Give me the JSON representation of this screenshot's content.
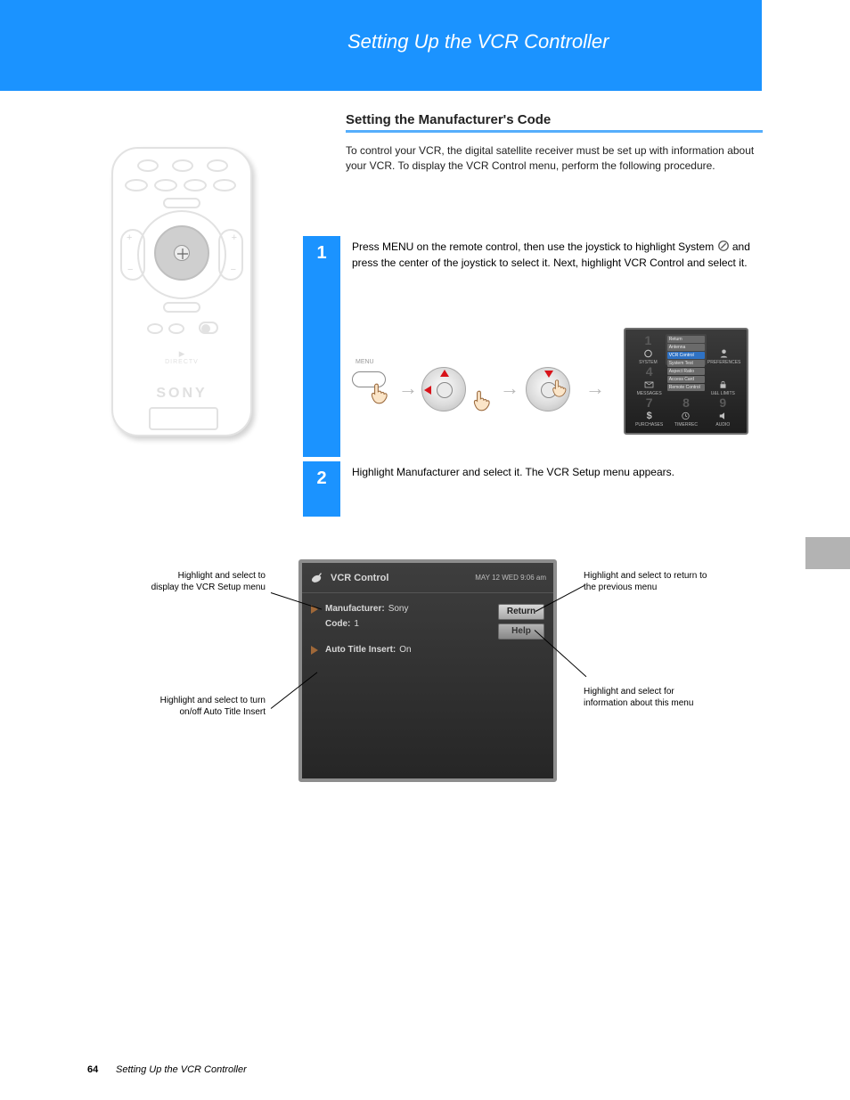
{
  "banner": {
    "title": "Setting Up the VCR Controller",
    "bg": "#1b93ff",
    "text_color": "#ffffff"
  },
  "section": {
    "heading": "Setting the Manufacturer's Code",
    "intro": "To control your VCR, the digital satellite receiver must be set up with information about your VCR. To display the VCR Control menu, perform the following procedure."
  },
  "steps": {
    "s1": {
      "num": "1",
      "text_a": "Press MENU on the remote control, then use the joystick to highlight System ",
      "text_b": " and press the center of the joystick to select it. Next, highlight VCR Control and select it.",
      "icon_label": "sat-icon",
      "menu_label": "MENU"
    },
    "s2": {
      "num": "2",
      "text": "Highlight Manufacturer and select it. The VCR Setup menu appears."
    }
  },
  "menu_thumb": {
    "cells": {
      "c1": {
        "num": "1",
        "label": "SYSTEM"
      },
      "c3": {
        "num": "3",
        "label": "PREFERENCES"
      },
      "c4": {
        "num": "4",
        "label": "MESSAGES"
      },
      "c6": {
        "num": "6",
        "label": "U&L LIMITS"
      },
      "c7": {
        "num": "7",
        "label": "PURCHASES"
      },
      "c8": {
        "num": "8",
        "label": "TIMERREC"
      },
      "c9": {
        "num": "9",
        "label": "AUDIO"
      }
    },
    "center_items": [
      "Return",
      "Antenna",
      "VCR Control",
      "System Test",
      "Aspect Ratio",
      "Access Card",
      "Remote Control"
    ],
    "hl_index": 2
  },
  "vcr": {
    "title": "VCR Control",
    "timestamp": "MAY 12 WED  9:06 am",
    "rows": {
      "manufacturer_label": "Manufacturer:",
      "manufacturer_value": "Sony",
      "code_label": "Code:",
      "code_value": "1",
      "auto_label": "Auto Title Insert:",
      "auto_value": "On"
    },
    "buttons": {
      "return": "Return",
      "help": "Help"
    }
  },
  "callouts": {
    "left_top": "Highlight and select to display the VCR Setup menu",
    "left_bottom": "Highlight and select to turn on/off Auto Title Insert",
    "right_top": "Highlight and select to return to the previous menu",
    "right_bottom": "Highlight and select for information about this menu"
  },
  "lower": {
    "note": ""
  },
  "footer": {
    "page": "64",
    "title": "Setting Up the VCR Controller"
  },
  "colors": {
    "accent": "#1b93ff",
    "divider": "#55aefc",
    "panel_bg": "#303030",
    "panel_border": "#8d8d8d",
    "btn_light": "#d8d8d8",
    "arrow_red": "#d8131a",
    "tri": "#a06838"
  },
  "remote_brand": "SONY",
  "remote_logo": "DIRECTV"
}
